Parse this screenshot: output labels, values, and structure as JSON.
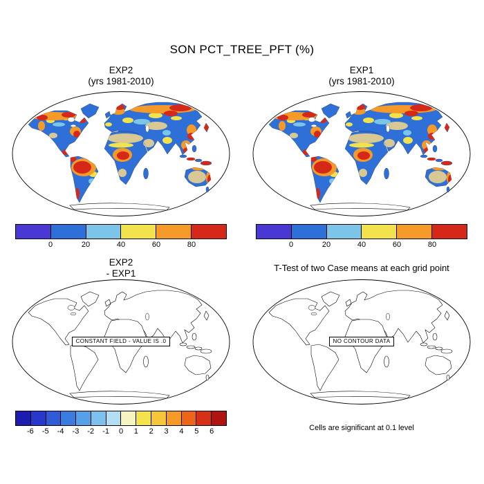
{
  "title": "SON PCT_TREE_PFT (%)",
  "panels": {
    "exp2": {
      "title": "EXP2",
      "subtitle": "(yrs 1981-2010)"
    },
    "exp1": {
      "title": "EXP1",
      "subtitle": "(yrs 1981-2010)"
    },
    "diff": {
      "title": "EXP2",
      "subtitle": "- EXP1",
      "annotation": "CONSTANT FIELD - VALUE IS .0"
    },
    "ttest": {
      "title": "T-Test of two Case means at each grid point",
      "annotation": "NO CONTOUR DATA",
      "footnote": "Cells are significant at 0.1 level"
    }
  },
  "colorbars": {
    "pct": {
      "labels": [
        "0",
        "20",
        "40",
        "60",
        "80"
      ],
      "colors": [
        "#4a38d4",
        "#2f6fd8",
        "#7cc4e8",
        "#f2e24c",
        "#f59a28",
        "#d62818"
      ]
    },
    "diff": {
      "labels": [
        "-6",
        "-5",
        "-4",
        "-3",
        "-2",
        "-1",
        "0",
        "1",
        "2",
        "3",
        "4",
        "5",
        "6"
      ],
      "colors": [
        "#1c1cb0",
        "#2838cc",
        "#2f5ad8",
        "#3b7ce0",
        "#55a0e8",
        "#7cc0ee",
        "#b4def4",
        "#f8f4c0",
        "#f4e44c",
        "#f5c638",
        "#f59a28",
        "#ee6418",
        "#d83018",
        "#b01410"
      ]
    }
  },
  "chart_data": [
    {
      "type": "heatmap",
      "panel": "top-left",
      "title": "EXP2",
      "subtitle": "(yrs 1981-2010)",
      "variable": "SON PCT_TREE_PFT",
      "units": "%",
      "projection": "Robinson-style global map",
      "colorbar_ticks": [
        0,
        20,
        40,
        60,
        80
      ],
      "pattern": "High tree cover (red/orange/yellow, >60%) over the Amazon, Congo basin, Southeast Asia/Indonesia, eastern North America and the boreal belts of Canada, Scandinavia and Siberia; most other land low (blue, 0-20%); deserts (Sahara, Arabia, central Asia, central Australia) pale tan."
    },
    {
      "type": "heatmap",
      "panel": "top-right",
      "title": "EXP1",
      "subtitle": "(yrs 1981-2010)",
      "variable": "SON PCT_TREE_PFT",
      "units": "%",
      "projection": "Robinson-style global map",
      "colorbar_ticks": [
        0,
        20,
        40,
        60,
        80
      ],
      "pattern": "Spatial pattern visually identical to EXP2."
    },
    {
      "type": "heatmap",
      "panel": "bottom-left",
      "title": "EXP2 - EXP1",
      "variable": "difference in SON PCT_TREE_PFT",
      "units": "%",
      "colorbar_ticks": [
        -6,
        -5,
        -4,
        -3,
        -2,
        -1,
        0,
        1,
        2,
        3,
        4,
        5,
        6
      ],
      "value": "constant field, all zeros (empty outline map)",
      "annotation": "CONSTANT FIELD - VALUE IS .0"
    },
    {
      "type": "map",
      "panel": "bottom-right",
      "title": "T-Test of two Case means at each grid point",
      "annotation": "NO CONTOUR DATA",
      "note": "Cells are significant at 0.1 level",
      "value": "no significant cells shown (empty outline map)"
    }
  ]
}
